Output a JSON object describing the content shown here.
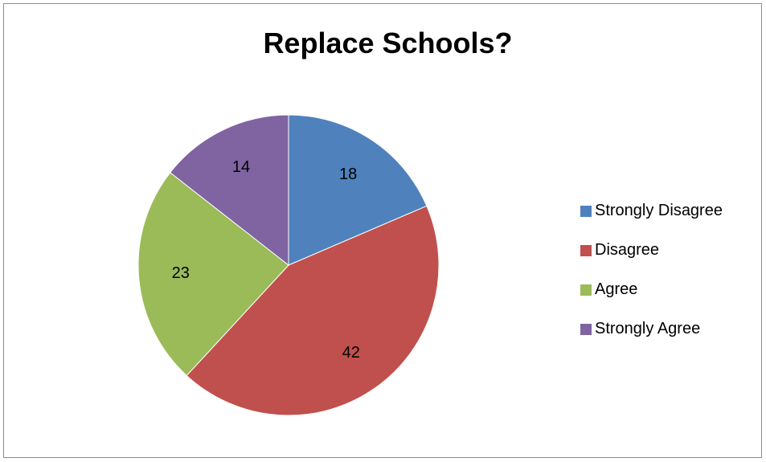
{
  "chart_data": {
    "type": "pie",
    "title": "Replace Schools?",
    "categories": [
      "Strongly Disagree",
      "Disagree",
      "Agree",
      "Strongly Agree"
    ],
    "values": [
      18,
      42,
      23,
      14
    ],
    "colors": [
      "#4f81bd",
      "#c0504d",
      "#9bbb59",
      "#8064a2"
    ],
    "data_labels": [
      "18",
      "42",
      "23",
      "14"
    ],
    "legend_position": "right"
  }
}
